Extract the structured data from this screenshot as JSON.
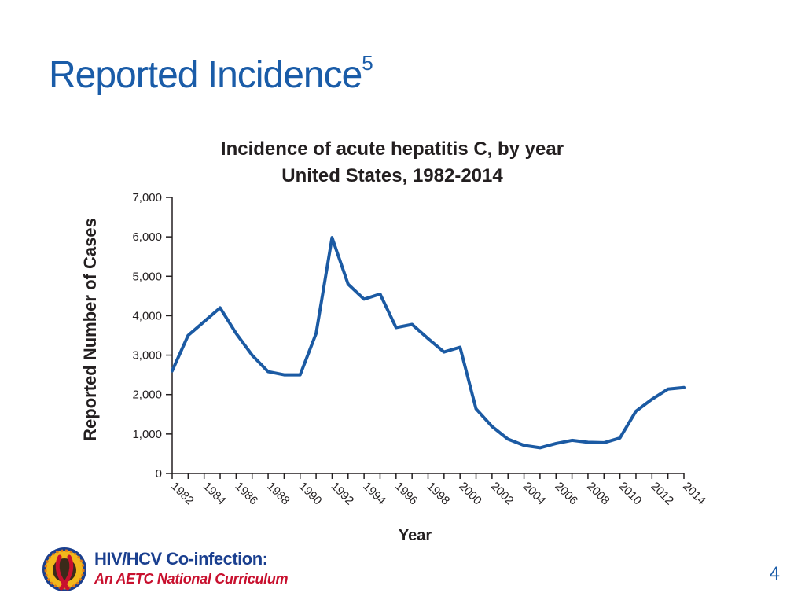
{
  "slide": {
    "title": "Reported Incidence",
    "title_superscript": "5",
    "page_number": "4"
  },
  "logo": {
    "line1": "HIV/HCV Co-infection:",
    "line2": "An AETC National Curriculum"
  },
  "colors": {
    "title": "#1a5ca8",
    "series": "#1b5aa3",
    "axis": "#231f20",
    "logo_blue": "#1a3f8f",
    "logo_red": "#c8102e"
  },
  "chart_data": {
    "type": "line",
    "title": [
      "Incidence of acute hepatitis C, by year",
      "United States, 1982-2014"
    ],
    "xlabel": "Year",
    "ylabel": "Reported Number of Cases",
    "xlim": [
      1982,
      2014
    ],
    "ylim": [
      0,
      7000
    ],
    "x_ticks": [
      1982,
      1984,
      1986,
      1988,
      1990,
      1992,
      1994,
      1996,
      1998,
      2000,
      2002,
      2004,
      2006,
      2008,
      2010,
      2012,
      2014
    ],
    "y_ticks": [
      0,
      1000,
      2000,
      3000,
      4000,
      5000,
      6000,
      7000
    ],
    "y_tick_labels": [
      "0",
      "1,000",
      "2,000",
      "3,000",
      "4,000",
      "5,000",
      "6,000",
      "7,000"
    ],
    "grid": false,
    "series": [
      {
        "x": [
          1982,
          1983,
          1984,
          1985,
          1986,
          1987,
          1988,
          1989,
          1990,
          1991,
          1992,
          1993,
          1994,
          1995,
          1996,
          1997,
          1998,
          1999,
          2000,
          2001,
          2002,
          2003,
          2004,
          2005,
          2006,
          2007,
          2008,
          2009,
          2010,
          2011,
          2012,
          2013,
          2014
        ],
        "values": [
          2600,
          3500,
          3850,
          4200,
          3550,
          3000,
          2580,
          2500,
          2500,
          3550,
          5980,
          4800,
          4420,
          4550,
          3700,
          3780,
          3420,
          3080,
          3200,
          1640,
          1190,
          870,
          710,
          650,
          760,
          840,
          790,
          780,
          900,
          1580,
          1880,
          2140,
          2180
        ]
      }
    ]
  }
}
